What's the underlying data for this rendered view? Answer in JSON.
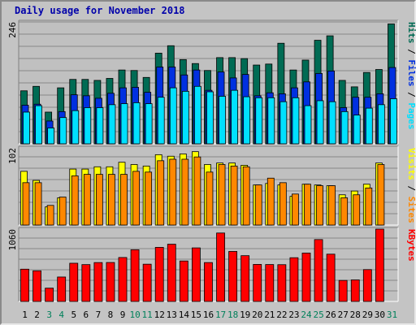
{
  "title": "Daily usage for November 2018",
  "colors": {
    "frame_bg": "#c4c4c4",
    "title": "#0000aa",
    "hits": "#006b54",
    "files": "#0030e0",
    "pages": "#00e0ff",
    "visits": "#ffff00",
    "sites": "#ff8800",
    "kbytes": "#ff0000",
    "weekday_label": "#000000",
    "weekend_label": "#00805a"
  },
  "chart_data": [
    {
      "type": "bar",
      "name": "pages-files-hits",
      "categories": [
        "1",
        "2",
        "3",
        "4",
        "5",
        "6",
        "7",
        "8",
        "9",
        "10",
        "11",
        "12",
        "13",
        "14",
        "15",
        "16",
        "17",
        "18",
        "19",
        "20",
        "21",
        "22",
        "23",
        "24",
        "25",
        "26",
        "27",
        "28",
        "29",
        "30",
        "31"
      ],
      "ymax_label": "246",
      "ymax": 246,
      "series": [
        {
          "name": "Hits",
          "values": [
            107,
            116,
            64,
            113,
            130,
            130,
            128,
            132,
            149,
            148,
            134,
            183,
            198,
            170,
            162,
            148,
            174,
            174,
            172,
            159,
            161,
            203,
            149,
            169,
            209,
            218,
            128,
            115,
            144,
            150,
            242
          ]
        },
        {
          "name": "Files",
          "values": [
            78,
            80,
            46,
            65,
            99,
            97,
            92,
            102,
            113,
            114,
            104,
            155,
            155,
            139,
            149,
            108,
            145,
            133,
            140,
            97,
            103,
            101,
            113,
            125,
            142,
            147,
            73,
            94,
            94,
            101,
            154
          ]
        },
        {
          "name": "Pages",
          "values": [
            64,
            77,
            32,
            53,
            67,
            73,
            73,
            79,
            81,
            83,
            81,
            94,
            113,
            106,
            116,
            105,
            96,
            108,
            95,
            93,
            93,
            85,
            93,
            77,
            87,
            85,
            65,
            58,
            72,
            79,
            91
          ]
        }
      ],
      "ylabels": [
        "Pages",
        "Files",
        "Hits"
      ]
    },
    {
      "type": "bar",
      "name": "visits-sites",
      "categories": [
        "1",
        "2",
        "3",
        "4",
        "5",
        "6",
        "7",
        "8",
        "9",
        "10",
        "11",
        "12",
        "13",
        "14",
        "15",
        "16",
        "17",
        "18",
        "19",
        "20",
        "21",
        "22",
        "23",
        "24",
        "25",
        "26",
        "27",
        "28",
        "29",
        "30",
        "31"
      ],
      "ymax_label": "102",
      "ymax": 102,
      "series": [
        {
          "name": "Visits",
          "values": [
            71,
            59,
            24,
            36,
            74,
            74,
            77,
            77,
            83,
            80,
            78,
            93,
            91,
            94,
            97,
            80,
            82,
            82,
            79,
            53,
            55,
            53,
            38,
            54,
            53,
            52,
            40,
            45,
            54,
            82,
            0
          ]
        },
        {
          "name": "Sites",
          "values": [
            56,
            56,
            26,
            37,
            65,
            67,
            67,
            67,
            67,
            71,
            70,
            85,
            87,
            87,
            90,
            70,
            80,
            78,
            77,
            53,
            62,
            56,
            41,
            54,
            52,
            52,
            36,
            40,
            49,
            80,
            0
          ]
        }
      ],
      "ylabels": [
        "Sites",
        "Visits"
      ]
    },
    {
      "type": "bar",
      "name": "kbytes",
      "categories": [
        "1",
        "2",
        "3",
        "4",
        "5",
        "6",
        "7",
        "8",
        "9",
        "10",
        "11",
        "12",
        "13",
        "14",
        "15",
        "16",
        "17",
        "18",
        "19",
        "20",
        "21",
        "22",
        "23",
        "24",
        "25",
        "26",
        "27",
        "28",
        "29",
        "30",
        "31"
      ],
      "ymax_label": "1060",
      "ymax": 1060,
      "series": [
        {
          "name": "KBytes",
          "values": [
            473,
            449,
            195,
            358,
            560,
            540,
            570,
            571,
            644,
            758,
            546,
            793,
            839,
            593,
            785,
            570,
            1003,
            733,
            671,
            543,
            541,
            539,
            641,
            709,
            907,
            693,
            308,
            316,
            467,
            1060,
            0
          ]
        }
      ],
      "ylabels": [
        "KBytes"
      ]
    }
  ],
  "weekend_days": [
    3,
    4,
    10,
    11,
    17,
    18,
    24,
    25,
    31
  ]
}
